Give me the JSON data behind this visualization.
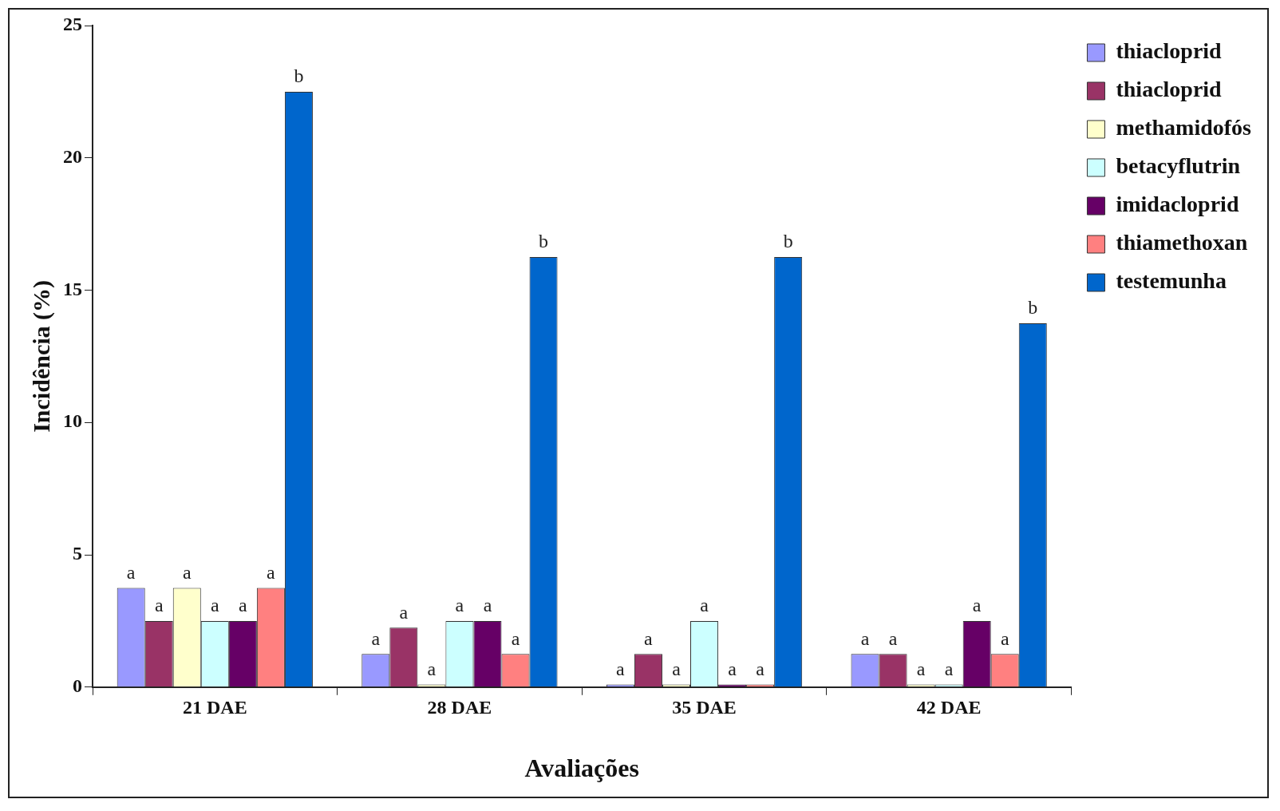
{
  "chart_data": {
    "type": "bar",
    "xlabel": "Avaliações",
    "ylabel": "Incidência (%)",
    "categories": [
      "21 DAE",
      "28 DAE",
      "35 DAE",
      "42 DAE"
    ],
    "series": [
      {
        "name": "thiacloprid",
        "color": "#9999ff",
        "values": [
          3.75,
          1.25,
          0.1,
          1.25
        ],
        "value_labels": [
          "a",
          "a",
          "a",
          "a"
        ]
      },
      {
        "name": "thiacloprid",
        "color": "#993366",
        "values": [
          2.5,
          2.25,
          1.25,
          1.25
        ],
        "value_labels": [
          "a",
          "a",
          "a",
          "a"
        ]
      },
      {
        "name": "methamidofós",
        "color": "#ffffcc",
        "values": [
          3.75,
          0.1,
          0.1,
          0.1
        ],
        "value_labels": [
          "a",
          "a",
          "a",
          "a"
        ]
      },
      {
        "name": "betacyflutrin",
        "color": "#ccffff",
        "values": [
          2.5,
          2.5,
          2.5,
          0.1
        ],
        "value_labels": [
          "a",
          "a",
          "a",
          "a"
        ]
      },
      {
        "name": "imidacloprid",
        "color": "#660066",
        "values": [
          2.5,
          2.5,
          0.1,
          2.5
        ],
        "value_labels": [
          "a",
          "a",
          "a",
          "a"
        ]
      },
      {
        "name": "thiamethoxan",
        "color": "#ff8080",
        "values": [
          3.75,
          1.25,
          0.1,
          1.25
        ],
        "value_labels": [
          "a",
          "a",
          "a",
          "a"
        ]
      },
      {
        "name": "testemunha",
        "color": "#0066cc",
        "values": [
          22.5,
          16.25,
          16.25,
          13.75
        ],
        "value_labels": [
          "b",
          "b",
          "b",
          "b"
        ]
      }
    ],
    "ylim": [
      0,
      25
    ],
    "yticks": [
      0,
      5,
      10,
      15,
      20,
      25
    ],
    "grid": false,
    "legend": "top right"
  }
}
